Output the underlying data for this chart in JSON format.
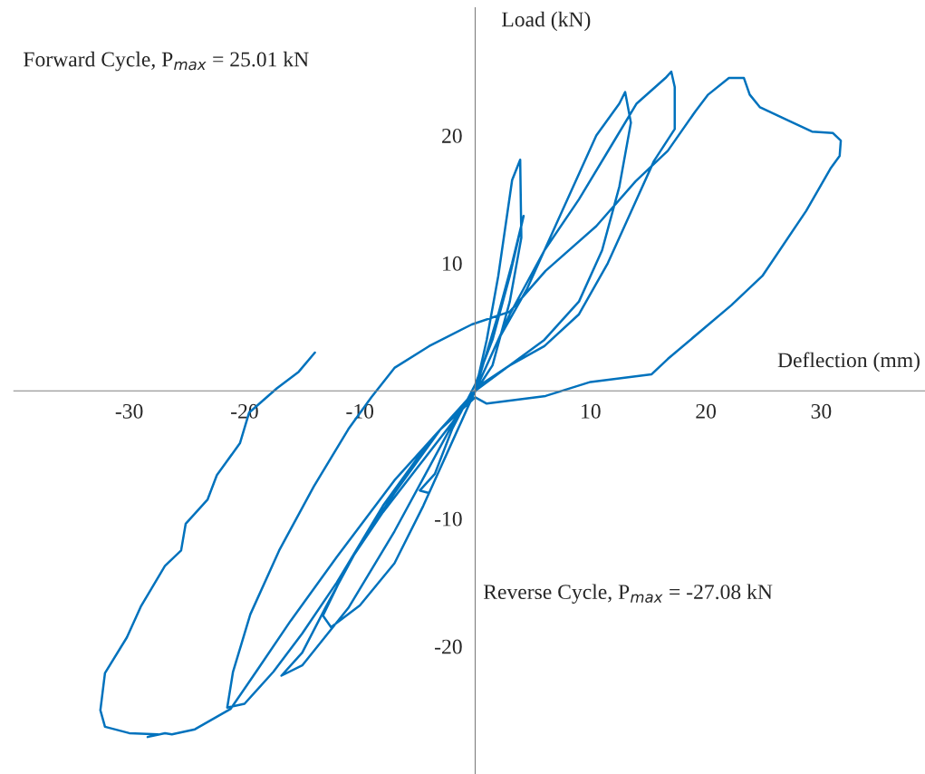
{
  "chart_data": {
    "type": "line",
    "xlabel": "Deflection (mm)",
    "ylabel": "Load (kN)",
    "annotations": [
      "Forward Cycle, P$_{max}$ = 25.01 kN",
      "Reverse Cycle, P$_{max}$ = -27.08 kN"
    ],
    "xlim": [
      -40,
      39
    ],
    "ylim": [
      -30,
      30
    ],
    "xticks": [
      -30,
      -20,
      -10,
      10,
      20,
      30
    ],
    "yticks": [
      -20,
      -10,
      10,
      20
    ],
    "grid": false,
    "legend": false,
    "line_style": "solid",
    "marker": "none",
    "series": [
      {
        "color": "#0072bd",
        "x": [
          0,
          1,
          2,
          3.2,
          4.2,
          3,
          1.5,
          0,
          -2,
          -3.5,
          -4.8,
          -4,
          -3,
          -1,
          0,
          1,
          2,
          2.8,
          3.2,
          3.9,
          4,
          3,
          1.5,
          0.2,
          -2,
          -5,
          -8,
          -11,
          -13.2,
          -12.5,
          -10,
          -7,
          -4.5,
          -2,
          0,
          2,
          4.5,
          7,
          9,
          10.5,
          12.5,
          13,
          13.5,
          12.5,
          11,
          9,
          6,
          3,
          0.5,
          -3,
          -7,
          -10,
          -13,
          -15,
          -16.8,
          -15,
          -11,
          -7,
          -4,
          -1,
          0,
          3,
          6,
          9,
          12,
          14,
          16.5,
          17,
          17.3,
          17.3,
          15.5,
          13.5,
          11.5,
          9,
          6,
          3,
          0,
          -4,
          -8,
          -12,
          -15,
          -17.5,
          -20,
          -21.5,
          -21,
          -19.5,
          -17,
          -14,
          -11,
          -9,
          -7,
          -4,
          -0.3,
          3,
          6.1,
          10.5,
          13.9,
          16.7,
          19.1,
          20.2,
          22,
          23.3,
          23.8,
          24.7,
          27.3,
          29.2,
          31,
          31.7,
          31.6,
          30.8,
          28.7,
          24.9,
          22.2,
          16.7,
          15.3,
          10,
          6.1,
          1,
          0,
          -3,
          -7,
          -12,
          -16,
          -19,
          -21.2,
          -24.3,
          -26.3,
          -26.9,
          -28.4,
          -27.5,
          -30,
          -32.1,
          -32.5,
          -32.1,
          -30.2,
          -29,
          -26.9,
          -25.5,
          -25.1,
          -23.2,
          -22.4,
          -20.4,
          -19.6,
          -17.2,
          -15.3,
          -13.9
        ],
        "values": [
          0,
          3,
          6,
          10,
          13.7,
          9,
          4,
          0.5,
          -3,
          -6.5,
          -7.8,
          -8,
          -6,
          -2,
          0,
          4,
          9,
          14,
          16.5,
          18.1,
          12,
          7,
          2,
          0.2,
          -2.5,
          -6,
          -9.5,
          -13.5,
          -17.6,
          -18.5,
          -16.8,
          -13.5,
          -9,
          -4,
          0,
          4,
          8,
          13,
          17,
          20,
          22.5,
          23.4,
          21,
          16,
          11,
          7,
          4,
          2,
          0.5,
          -3,
          -8,
          -12,
          -17,
          -20.5,
          -22.3,
          -21.5,
          -17,
          -11,
          -6,
          -1,
          0,
          6,
          11,
          15,
          19.5,
          22.5,
          24.5,
          25,
          23.8,
          20.5,
          18,
          14,
          10,
          6,
          3.5,
          2,
          0,
          -4,
          -9,
          -15,
          -19,
          -22,
          -24.5,
          -24.8,
          -22,
          -17.5,
          -12.5,
          -7.5,
          -3,
          -0.5,
          1.8,
          3.5,
          5.2,
          6.2,
          9.4,
          12.9,
          16.4,
          18.8,
          21.9,
          23.2,
          24.5,
          24.5,
          23.2,
          22.2,
          21.1,
          20.3,
          20.2,
          19.6,
          18.4,
          17.4,
          14.1,
          9,
          6.7,
          2.5,
          1.3,
          0.7,
          -0.4,
          -1,
          -0.5,
          -3,
          -7,
          -13,
          -18,
          -22,
          -24.9,
          -26.5,
          -26.9,
          -26.8,
          -27.1,
          -26.9,
          -26.8,
          -26.3,
          -25,
          -22.1,
          -19.3,
          -16.9,
          -13.7,
          -12.5,
          -10.4,
          -8.5,
          -6.6,
          -4.1,
          -1.7,
          0.2,
          1.5,
          3
        ]
      }
    ]
  }
}
